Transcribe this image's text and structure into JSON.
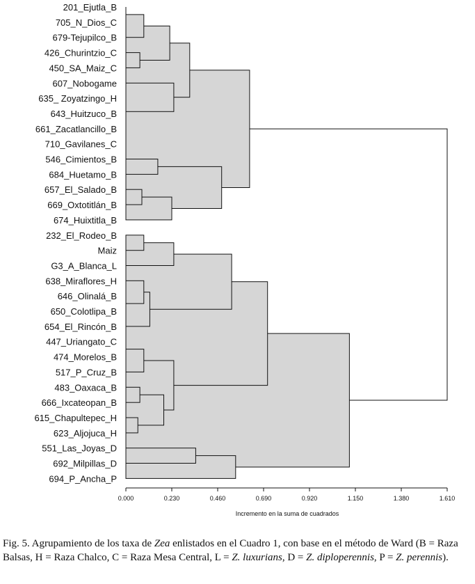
{
  "chart_data": {
    "type": "dendrogram",
    "xlabel": "Incremento en la suma de cuadrados",
    "xlim": [
      0,
      1.61
    ],
    "ticks": [
      0.0,
      0.23,
      0.46,
      0.69,
      0.92,
      1.15,
      1.38,
      1.61
    ],
    "tick_labels": [
      "0.000",
      "0.230",
      "0.460",
      "0.690",
      "0.920",
      "1.150",
      "1.380",
      "1.610"
    ],
    "leaves": [
      "201_Ejutla_B",
      "705_N_Dios_C",
      "679-Tejupilco_B",
      "426_Churintzio_C",
      "450_SA_Maiz_C",
      "607_Nobogame",
      "635_ Zoyatzingo_H",
      "643_Huitzuco_B",
      "661_Zacatlancillo_B",
      "710_Gavilanes_C",
      "546_Cimientos_B",
      "684_Huetamo_B",
      "657_El_Salado_B",
      "669_Oxtotitlán_B",
      "674_Huixtitla_B",
      "232_El_Rodeo_B",
      "Maiz",
      "G3_A_Blanca_L",
      "638_Miraflores_H",
      "646_Olinalá_B",
      "650_Colotlipa_B",
      "654_El_Rincón_B",
      "447_Uriangato_C",
      "474_Morelos_B",
      "517_P_Cruz_B",
      "483_Oaxaca_B",
      "666_Ixcateopan_B",
      "615_Chapultepec_H",
      "623_Aljojuca_H",
      "551_Las_Joyas_D",
      "692_Milpillas_D",
      "694_P_Ancha_P"
    ],
    "merges": [
      {
        "id": "n1",
        "children": [
          0,
          1
        ],
        "height": 0.0
      },
      {
        "id": "n2",
        "children": [
          "n1",
          2
        ],
        "height": 0.09
      },
      {
        "id": "n3",
        "children": [
          3,
          4
        ],
        "height": 0.07
      },
      {
        "id": "n4",
        "children": [
          "n2",
          "n3"
        ],
        "height": 0.22
      },
      {
        "id": "n5",
        "children": [
          8,
          9
        ],
        "height": 0.0
      },
      {
        "id": "n6",
        "children": [
          7,
          "n5"
        ],
        "height": 0.0
      },
      {
        "id": "n7",
        "children": [
          6,
          "n6"
        ],
        "height": 0.0
      },
      {
        "id": "n8",
        "children": [
          5,
          "n7"
        ],
        "height": 0.24
      },
      {
        "id": "n9",
        "children": [
          "n4",
          "n8"
        ],
        "height": 0.32
      },
      {
        "id": "n10",
        "children": [
          10,
          11
        ],
        "height": 0.16
      },
      {
        "id": "n11",
        "children": [
          12,
          13
        ],
        "height": 0.08
      },
      {
        "id": "n12",
        "children": [
          "n11",
          14
        ],
        "height": 0.23
      },
      {
        "id": "n13",
        "children": [
          "n10",
          "n12"
        ],
        "height": 0.48
      },
      {
        "id": "n14",
        "children": [
          "n9",
          "n13"
        ],
        "height": 0.62
      },
      {
        "id": "n15",
        "children": [
          15,
          16
        ],
        "height": 0.09
      },
      {
        "id": "n16",
        "children": [
          "n15",
          17
        ],
        "height": 0.24
      },
      {
        "id": "n17",
        "children": [
          19,
          20
        ],
        "height": 0.0
      },
      {
        "id": "n18",
        "children": [
          18,
          "n17"
        ],
        "height": 0.09
      },
      {
        "id": "n19",
        "children": [
          "n18",
          21
        ],
        "height": 0.12
      },
      {
        "id": "n20",
        "children": [
          "n16",
          "n19"
        ],
        "height": 0.53
      },
      {
        "id": "n21",
        "children": [
          22,
          23
        ],
        "height": 0.0
      },
      {
        "id": "n22",
        "children": [
          "n21",
          24
        ],
        "height": 0.09
      },
      {
        "id": "n23",
        "children": [
          25,
          26
        ],
        "height": 0.07
      },
      {
        "id": "n24",
        "children": [
          27,
          28
        ],
        "height": 0.06
      },
      {
        "id": "n25",
        "children": [
          "n23",
          "n24"
        ],
        "height": 0.19
      },
      {
        "id": "n26",
        "children": [
          "n22",
          "n25"
        ],
        "height": 0.24
      },
      {
        "id": "n27",
        "children": [
          "n20",
          "n26"
        ],
        "height": 0.71
      },
      {
        "id": "n28",
        "children": [
          29,
          30
        ],
        "height": 0.35
      },
      {
        "id": "n29",
        "children": [
          "n28",
          31
        ],
        "height": 0.55
      },
      {
        "id": "n30",
        "children": [
          "n27",
          "n29"
        ],
        "height": 1.12
      },
      {
        "id": "n31",
        "children": [
          "n14",
          "n30"
        ],
        "height": 1.61
      }
    ]
  },
  "caption": {
    "p1": "Fig. 5. Agrupamiento de los taxa de ",
    "p2": "Zea",
    "p3": " enlistados en el Cuadro 1, con base en el método de Ward (B = Raza Balsas, H = Raza Chalco, C = Raza Mesa Central, L = ",
    "p4": "Z. luxurians",
    "p5": ", D = ",
    "p6": "Z. diploperennis",
    "p7": ", P = ",
    "p8": "Z. perennis",
    "p9": ")."
  }
}
